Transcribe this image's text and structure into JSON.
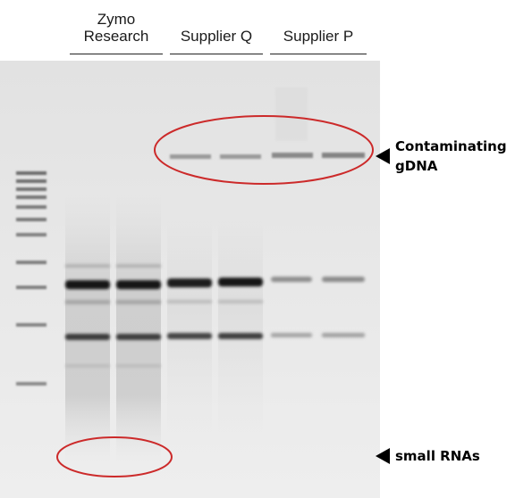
{
  "lane_groups": [
    {
      "line1": "Zymo",
      "line2": "Research"
    },
    {
      "line1": "Supplier Q",
      "line2": ""
    },
    {
      "line1": "Supplier P",
      "line2": ""
    }
  ],
  "annotations": {
    "gdna_line1": "Contaminating",
    "gdna_line2": "gDNA",
    "small_rna": "small RNAs"
  },
  "colors": {
    "circle": "#cc2a2a",
    "band": "#101010",
    "gel_background": "#e6e6e6"
  }
}
